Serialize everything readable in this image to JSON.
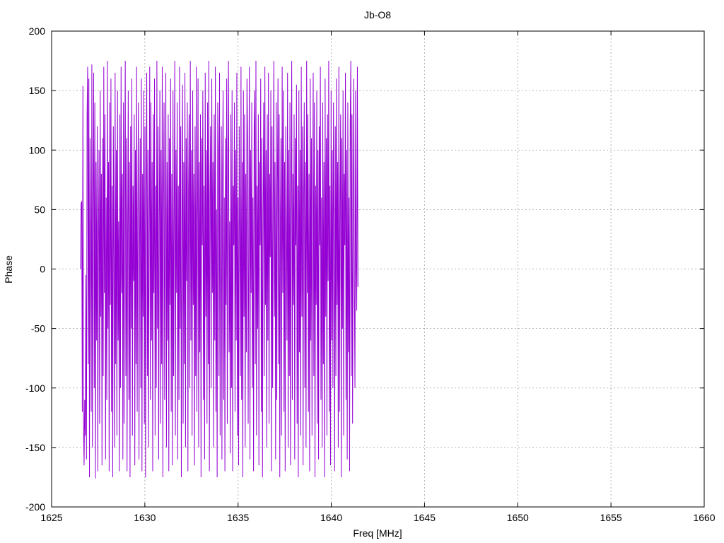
{
  "chart_data": {
    "type": "line",
    "title": "Jb-O8",
    "xlabel": "Freq [MHz]",
    "ylabel": "Phase",
    "xlim": [
      1625,
      1660
    ],
    "ylim": [
      -200,
      200
    ],
    "xticks": [
      1625,
      1630,
      1635,
      1640,
      1645,
      1650,
      1655,
      1660
    ],
    "yticks": [
      -200,
      -150,
      -100,
      -50,
      0,
      50,
      100,
      150,
      200
    ],
    "grid": true,
    "line_color": "#9400d3",
    "series": [
      {
        "x_start": 1626.55,
        "x_step": 0.032,
        "values": [
          0,
          55,
          57,
          -120,
          154,
          -130,
          -165,
          -110,
          -140,
          -5,
          -160,
          130,
          170,
          -80,
          160,
          -175,
          110,
          30,
          -120,
          172,
          -150,
          60,
          165,
          -100,
          140,
          -176,
          90,
          -60,
          120,
          -170,
          20,
          100,
          -130,
          150,
          -40,
          80,
          -165,
          110,
          -90,
          170,
          -20,
          130,
          -160,
          60,
          -110,
          175,
          -50,
          90,
          -170,
          140,
          -30,
          160,
          -120,
          70,
          -175,
          120,
          10,
          -150,
          165,
          -80,
          100,
          -140,
          150,
          -60,
          40,
          -170,
          130,
          -100,
          170,
          -20,
          80,
          -160,
          140,
          -130,
          60,
          175,
          -90,
          110,
          -170,
          30,
          150,
          -110,
          90,
          -175,
          120,
          -50,
          160,
          -140,
          70,
          -10,
          130,
          -165,
          100,
          -80,
          170,
          -120,
          50,
          140,
          -160,
          20,
          110,
          -100,
          160,
          -170,
          80,
          -40,
          150,
          -130,
          120,
          -175,
          60,
          165,
          -90,
          100,
          -150,
          30,
          170,
          -110,
          140,
          -60,
          90,
          -170,
          130,
          -20,
          160,
          -140,
          70,
          -100,
          175,
          -50,
          120,
          -160,
          40,
          150,
          -130,
          100,
          -80,
          170,
          -175,
          60,
          140,
          -110,
          20,
          165,
          -150,
          90,
          -60,
          130,
          -170,
          110,
          -30,
          160,
          -120,
          80,
          -165,
          150,
          -90,
          50,
          175,
          -140,
          100,
          -20,
          140,
          -160,
          70,
          -110,
          170,
          -50,
          120,
          -175,
          30,
          155,
          -130,
          90,
          -80,
          165,
          -150,
          110,
          -10,
          140,
          -170,
          60,
          130,
          -100,
          175,
          -60,
          100,
          -140,
          150,
          -30,
          80,
          -165,
          120,
          -90,
          170,
          -120,
          40,
          160,
          -150,
          90,
          -70,
          130,
          -175,
          110,
          20,
          150,
          -110,
          70,
          -160,
          165,
          -40,
          100,
          -130,
          140,
          -80,
          175,
          -170,
          60,
          120,
          -100,
          160,
          -20,
          90,
          -150,
          130,
          -60,
          170,
          -120,
          50,
          -175,
          140,
          100,
          -90,
          165,
          -140,
          30,
          120,
          -160,
          80,
          150,
          -110,
          60,
          -170,
          110,
          -30,
          160,
          -130,
          90,
          175,
          -70,
          40,
          -155,
          130,
          -100,
          150,
          -170,
          70,
          20,
          140,
          -120,
          100,
          -60,
          165,
          -140,
          60,
          -165,
          120,
          30,
          -90,
          170,
          -110,
          90,
          -175,
          150,
          -40,
          130,
          -150,
          80,
          -70,
          160,
          110,
          -130,
          40,
          170,
          -160,
          100,
          -20,
          140,
          -100,
          60,
          -170,
          120,
          150,
          -80,
          175,
          -140,
          70,
          -50,
          130,
          -165,
          90,
          20,
          160,
          -120,
          110,
          -175,
          50,
          140,
          -90,
          170,
          -30,
          100,
          -150,
          130,
          -60,
          165,
          -130,
          80,
          10,
          150,
          -170,
          120,
          -100,
          60,
          175,
          -40,
          90,
          -160,
          140,
          -110,
          70,
          160,
          -80,
          130,
          -175,
          40,
          110,
          -140,
          170,
          -20,
          150,
          -120,
          90,
          -170,
          120,
          30,
          -60,
          165,
          -150,
          100,
          -90,
          140,
          -165,
          60,
          175,
          -110,
          80,
          -30,
          130,
          -160,
          110,
          20,
          155,
          -130,
          70,
          -175,
          150,
          -70,
          100,
          -140,
          170,
          -40,
          120,
          -165,
          60,
          140,
          -100,
          90,
          -150,
          175,
          -20,
          130,
          -120,
          80,
          -170,
          160,
          -60,
          110,
          -140,
          40,
          165,
          -90,
          140,
          -175,
          70,
          -30,
          150,
          -130,
          100,
          -160,
          120,
          20,
          170,
          -110,
          60,
          -150,
          140,
          -80,
          90,
          -175,
          160,
          -40,
          110,
          -140,
          130,
          -10,
          175,
          -120,
          70,
          -165,
          150,
          -60,
          100,
          -100,
          140,
          30,
          -170,
          120,
          -90,
          160,
          -30,
          90,
          -150,
          170,
          -120,
          60,
          130,
          -175,
          110,
          -50,
          150,
          -140,
          80,
          20,
          165,
          -110,
          100,
          -160,
          140,
          -70,
          60,
          -170,
          120,
          175,
          -90,
          130,
          -130,
          40,
          160,
          -20,
          -100,
          150,
          0,
          -35,
          170,
          -15
        ]
      }
    ]
  }
}
